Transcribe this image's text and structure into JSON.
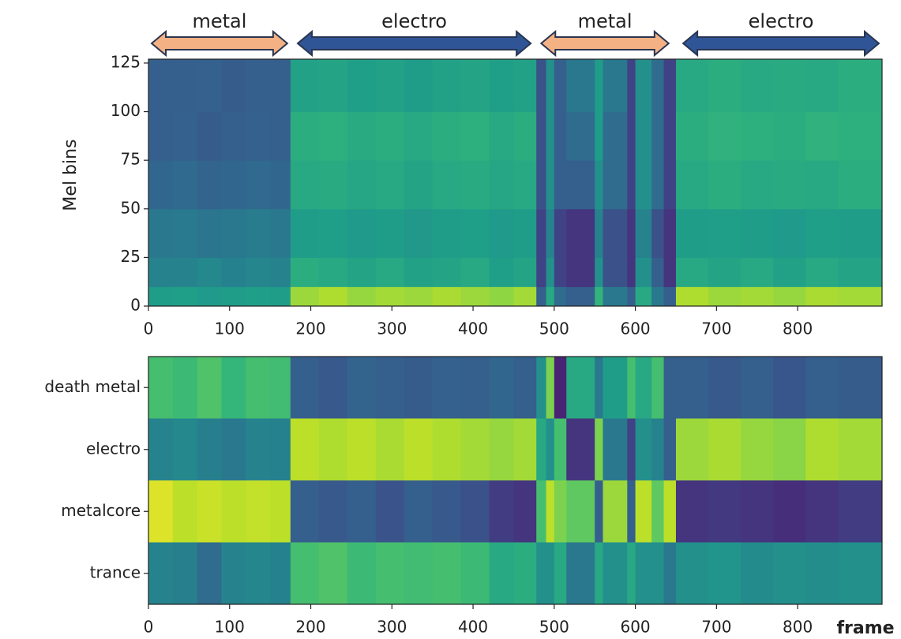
{
  "chart_data": [
    {
      "type": "heatmap",
      "annotations": [
        {
          "text": "metal",
          "start": 0,
          "end": 175,
          "color": "#f4b183"
        },
        {
          "text": "electro",
          "start": 180,
          "end": 475,
          "color": "#2f5597"
        },
        {
          "text": "metal",
          "start": 480,
          "end": 645,
          "color": "#f4b183"
        },
        {
          "text": "electro",
          "start": 655,
          "end": 904,
          "color": "#2f5597"
        }
      ],
      "ylabel": "Mel bins",
      "bins": [
        0,
        30,
        60,
        90,
        120,
        150,
        175,
        210,
        245,
        280,
        315,
        350,
        385,
        420,
        450,
        478,
        490,
        500,
        515,
        550,
        560,
        590,
        600,
        620,
        635,
        650,
        690,
        730,
        770,
        810,
        850,
        904
      ],
      "y_bins": [
        0,
        10,
        25,
        50,
        75,
        100,
        127
      ],
      "z": [
        [
          0.55,
          0.56,
          0.54,
          0.55,
          0.56,
          0.55,
          0.85,
          0.88,
          0.84,
          0.86,
          0.85,
          0.87,
          0.85,
          0.83,
          0.86,
          0.3,
          0.6,
          0.35,
          0.3,
          0.65,
          0.4,
          0.3,
          0.6,
          0.4,
          0.3,
          0.88,
          0.85,
          0.86,
          0.84,
          0.87,
          0.86
        ],
        [
          0.45,
          0.45,
          0.47,
          0.44,
          0.46,
          0.45,
          0.62,
          0.6,
          0.58,
          0.6,
          0.57,
          0.58,
          0.6,
          0.56,
          0.58,
          0.2,
          0.5,
          0.2,
          0.15,
          0.5,
          0.25,
          0.15,
          0.5,
          0.3,
          0.15,
          0.6,
          0.58,
          0.6,
          0.57,
          0.6,
          0.58
        ],
        [
          0.4,
          0.41,
          0.39,
          0.4,
          0.42,
          0.4,
          0.55,
          0.56,
          0.54,
          0.55,
          0.53,
          0.55,
          0.56,
          0.54,
          0.55,
          0.2,
          0.45,
          0.2,
          0.15,
          0.45,
          0.25,
          0.15,
          0.45,
          0.25,
          0.15,
          0.55,
          0.56,
          0.55,
          0.54,
          0.56,
          0.55
        ],
        [
          0.33,
          0.34,
          0.32,
          0.33,
          0.34,
          0.33,
          0.6,
          0.61,
          0.59,
          0.6,
          0.58,
          0.6,
          0.61,
          0.59,
          0.6,
          0.25,
          0.5,
          0.3,
          0.3,
          0.5,
          0.35,
          0.2,
          0.5,
          0.35,
          0.2,
          0.6,
          0.62,
          0.6,
          0.61,
          0.6,
          0.62
        ],
        [
          0.3,
          0.31,
          0.29,
          0.3,
          0.31,
          0.3,
          0.62,
          0.63,
          0.61,
          0.62,
          0.6,
          0.62,
          0.63,
          0.6,
          0.62,
          0.25,
          0.5,
          0.3,
          0.35,
          0.55,
          0.35,
          0.2,
          0.5,
          0.35,
          0.2,
          0.62,
          0.64,
          0.63,
          0.62,
          0.64,
          0.63
        ],
        [
          0.3,
          0.3,
          0.31,
          0.29,
          0.3,
          0.3,
          0.57,
          0.58,
          0.56,
          0.57,
          0.55,
          0.57,
          0.58,
          0.56,
          0.57,
          0.25,
          0.5,
          0.3,
          0.4,
          0.55,
          0.4,
          0.2,
          0.5,
          0.35,
          0.2,
          0.6,
          0.62,
          0.6,
          0.61,
          0.6,
          0.62
        ]
      ],
      "xlim": [
        0,
        904
      ],
      "ylim": [
        0,
        127
      ],
      "xticks": [
        0,
        100,
        200,
        300,
        400,
        500,
        600,
        700,
        800
      ],
      "yticks": [
        0,
        25,
        50,
        75,
        100,
        125
      ],
      "clim": [
        0,
        1
      ],
      "colormap": [
        "#440154",
        "#482878",
        "#3e4989",
        "#31688e",
        "#26828e",
        "#1f9e89",
        "#35b779",
        "#6ece58",
        "#b5de2b",
        "#fde725"
      ]
    },
    {
      "type": "heatmap",
      "xlabel": "frame",
      "categories": [
        "death metal",
        "electro",
        "metalcore",
        "trance"
      ],
      "bins": [
        0,
        30,
        60,
        90,
        120,
        150,
        175,
        210,
        245,
        280,
        315,
        350,
        385,
        420,
        450,
        478,
        490,
        500,
        515,
        550,
        560,
        590,
        600,
        620,
        635,
        650,
        690,
        730,
        770,
        810,
        850,
        904
      ],
      "z": [
        [
          0.7,
          0.68,
          0.72,
          0.66,
          0.7,
          0.69,
          0.3,
          0.28,
          0.32,
          0.3,
          0.29,
          0.31,
          0.3,
          0.33,
          0.3,
          0.5,
          0.8,
          0.1,
          0.6,
          0.4,
          0.55,
          0.7,
          0.6,
          0.7,
          0.3,
          0.3,
          0.28,
          0.3,
          0.27,
          0.3,
          0.29
        ],
        [
          0.45,
          0.47,
          0.43,
          0.4,
          0.45,
          0.44,
          0.9,
          0.88,
          0.9,
          0.87,
          0.9,
          0.88,
          0.86,
          0.84,
          0.86,
          0.6,
          0.5,
          0.7,
          0.15,
          0.8,
          0.4,
          0.2,
          0.5,
          0.45,
          0.3,
          0.85,
          0.87,
          0.84,
          0.82,
          0.88,
          0.86
        ],
        [
          0.95,
          0.9,
          0.92,
          0.9,
          0.91,
          0.9,
          0.3,
          0.28,
          0.3,
          0.26,
          0.3,
          0.28,
          0.25,
          0.18,
          0.15,
          0.7,
          0.9,
          0.8,
          0.75,
          0.3,
          0.85,
          0.3,
          0.9,
          0.75,
          0.9,
          0.15,
          0.17,
          0.15,
          0.13,
          0.15,
          0.18
        ],
        [
          0.45,
          0.43,
          0.35,
          0.45,
          0.46,
          0.44,
          0.7,
          0.72,
          0.68,
          0.7,
          0.69,
          0.7,
          0.68,
          0.6,
          0.62,
          0.5,
          0.5,
          0.6,
          0.4,
          0.6,
          0.5,
          0.6,
          0.5,
          0.5,
          0.4,
          0.5,
          0.52,
          0.48,
          0.5,
          0.49,
          0.5
        ]
      ],
      "xlim": [
        0,
        904
      ],
      "xticks": [
        0,
        100,
        200,
        300,
        400,
        500,
        600,
        700,
        800
      ],
      "clim": [
        0,
        1
      ],
      "colormap": [
        "#440154",
        "#482878",
        "#3e4989",
        "#31688e",
        "#26828e",
        "#1f9e89",
        "#35b779",
        "#6ece58",
        "#b5de2b",
        "#fde725"
      ]
    }
  ]
}
